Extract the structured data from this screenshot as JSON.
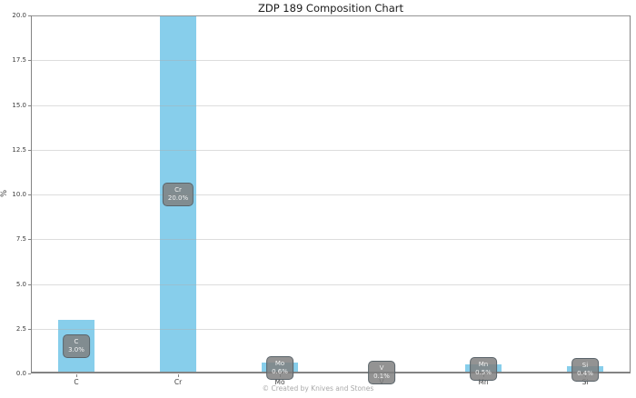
{
  "chart_data": {
    "type": "bar",
    "title": "ZDP 189 Composition Chart",
    "xlabel": "",
    "ylabel": "%",
    "categories": [
      "C",
      "Cr",
      "Mo",
      "V",
      "Mn",
      "Si"
    ],
    "values": [
      3.0,
      20.0,
      0.6,
      0.1,
      0.5,
      0.4
    ],
    "bar_labels": [
      {
        "element": "C",
        "pct": "3.0%"
      },
      {
        "element": "Cr",
        "pct": "20.0%"
      },
      {
        "element": "Mo",
        "pct": "0.6%"
      },
      {
        "element": "V",
        "pct": "0.1%"
      },
      {
        "element": "Mn",
        "pct": "0.5%"
      },
      {
        "element": "Si",
        "pct": "0.4%"
      }
    ],
    "ylim": [
      0,
      20
    ],
    "yticks": [
      0,
      2.5,
      5,
      7.5,
      10,
      12.5,
      15,
      17.5,
      20
    ],
    "ytick_labels": [
      "0.0",
      "2.5",
      "5.0",
      "7.5",
      "10.0",
      "12.5",
      "15.0",
      "17.5",
      "20.0"
    ],
    "grid": true,
    "legend": false
  },
  "watermark": "© Created by Knives and Stones",
  "colors": {
    "bar": "#87CEEB",
    "label_box_bg": "#808080D9",
    "label_box_border": "#5A646A",
    "label_text": "#F2F2F2",
    "grid": "#AFAFAF",
    "spine": "#838383",
    "axis_text": "#3C3C3C",
    "title_text": "#1A1A1A",
    "watermark_text": "#A9A9A9"
  }
}
